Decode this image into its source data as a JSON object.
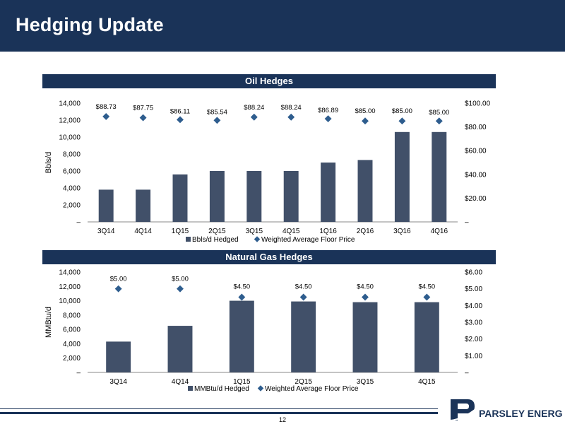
{
  "header": {
    "title": "Hedging Update"
  },
  "footer": {
    "page_number": "12",
    "brand": "PARSLEY ENERGY"
  },
  "colors": {
    "navy": "#1a3358",
    "bar": "#415069",
    "diamond": "#2e5d8e"
  },
  "chart_data": [
    {
      "type": "bar",
      "title": "Oil Hedges",
      "categories": [
        "3Q14",
        "4Q14",
        "1Q15",
        "2Q15",
        "3Q15",
        "4Q15",
        "1Q16",
        "2Q16",
        "3Q16",
        "4Q16"
      ],
      "ylabel": "Bbls/d",
      "ylim": [
        0,
        14000
      ],
      "y_ticks": [
        "–",
        "2,000",
        "4,000",
        "6,000",
        "8,000",
        "10,000",
        "12,000",
        "14,000"
      ],
      "y2lim": [
        0,
        100
      ],
      "y2_ticks": [
        "–",
        "$20.00",
        "$40.00",
        "$60.00",
        "$80.00",
        "$100.00"
      ],
      "series": [
        {
          "name": "Bbls/d Hedged",
          "kind": "bar",
          "values": [
            3800,
            3800,
            5600,
            6000,
            6000,
            6000,
            7000,
            7300,
            10600,
            10600
          ]
        },
        {
          "name": "Weighted Average Floor Price",
          "kind": "scatter",
          "axis": "right",
          "values": [
            88.73,
            87.75,
            86.11,
            85.54,
            88.24,
            88.24,
            86.89,
            85.0,
            85.0,
            85.0
          ],
          "labels": [
            "$88.73",
            "$87.75",
            "$86.11",
            "$85.54",
            "$88.24",
            "$88.24",
            "$86.89",
            "$85.00",
            "$85.00",
            "$85.00"
          ]
        }
      ],
      "legend": [
        "Bbls/d Hedged",
        "Weighted Average Floor Price"
      ]
    },
    {
      "type": "bar",
      "title": "Natural Gas Hedges",
      "categories": [
        "3Q14",
        "4Q14",
        "1Q15",
        "2Q15",
        "3Q15",
        "4Q15"
      ],
      "ylabel": "MMBtu/d",
      "ylim": [
        0,
        14000
      ],
      "y_ticks": [
        "–",
        "2,000",
        "4,000",
        "6,000",
        "8,000",
        "10,000",
        "12,000",
        "14,000"
      ],
      "y2lim": [
        0,
        6
      ],
      "y2_ticks": [
        "–",
        "$1.00",
        "$2.00",
        "$3.00",
        "$4.00",
        "$5.00",
        "$6.00"
      ],
      "series": [
        {
          "name": "MMBtu/d Hedged",
          "kind": "bar",
          "values": [
            4300,
            6500,
            10000,
            9900,
            9800,
            9800
          ]
        },
        {
          "name": "Weighted Average Floor Price",
          "kind": "scatter",
          "axis": "right",
          "values": [
            5.0,
            5.0,
            4.5,
            4.5,
            4.5,
            4.5
          ],
          "labels": [
            "$5.00",
            "$5.00",
            "$4.50",
            "$4.50",
            "$4.50",
            "$4.50"
          ]
        }
      ],
      "legend": [
        "MMBtu/d Hedged",
        "Weighted Average Floor Price"
      ]
    }
  ]
}
